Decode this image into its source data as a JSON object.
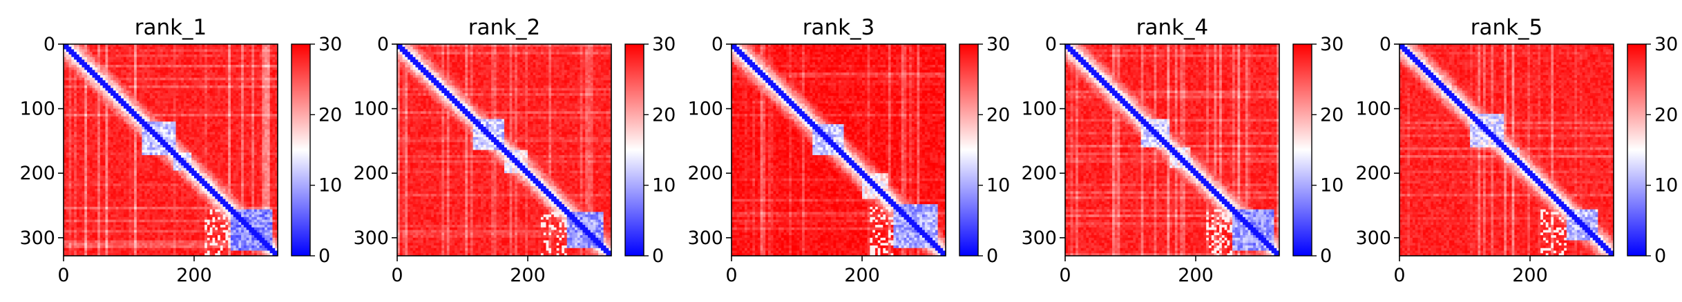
{
  "chart_data": [
    {
      "type": "heatmap",
      "title": "rank_1",
      "xlabel": "",
      "ylabel": "",
      "xlim": [
        0,
        328
      ],
      "ylim": [
        328,
        0
      ],
      "x_ticks": [
        0,
        200
      ],
      "y_ticks": [
        0,
        100,
        200,
        300
      ],
      "colorbar": {
        "cmap": "bwr",
        "range": [
          0,
          30
        ],
        "ticks": [
          0,
          10,
          20,
          30
        ]
      },
      "features": {
        "diag_width": 3,
        "domains": [
          {
            "start": 120,
            "end": 170,
            "value": 8
          },
          {
            "start": 170,
            "end": 195,
            "value": 10
          },
          {
            "start": 255,
            "end": 320,
            "value": 4
          }
        ],
        "background": 28
      }
    },
    {
      "type": "heatmap",
      "title": "rank_2",
      "xlabel": "",
      "ylabel": "",
      "xlim": [
        0,
        328
      ],
      "ylim": [
        328,
        0
      ],
      "x_ticks": [
        0,
        200
      ],
      "y_ticks": [
        0,
        100,
        200,
        300
      ],
      "colorbar": {
        "cmap": "bwr",
        "range": [
          0,
          30
        ],
        "ticks": [
          0,
          10,
          20,
          30
        ]
      },
      "features": {
        "diag_width": 3,
        "domains": [
          {
            "start": 115,
            "end": 165,
            "value": 8
          },
          {
            "start": 165,
            "end": 200,
            "value": 11
          },
          {
            "start": 260,
            "end": 315,
            "value": 5
          }
        ],
        "background": 28
      }
    },
    {
      "type": "heatmap",
      "title": "rank_3",
      "xlabel": "",
      "ylabel": "",
      "xlim": [
        0,
        328
      ],
      "ylim": [
        328,
        0
      ],
      "x_ticks": [
        0,
        200
      ],
      "y_ticks": [
        0,
        100,
        200,
        300
      ],
      "colorbar": {
        "cmap": "bwr",
        "range": [
          0,
          30
        ],
        "ticks": [
          0,
          10,
          20,
          30
        ]
      },
      "features": {
        "diag_width": 3,
        "domains": [
          {
            "start": 125,
            "end": 170,
            "value": 8
          },
          {
            "start": 200,
            "end": 240,
            "value": 12
          },
          {
            "start": 250,
            "end": 315,
            "value": 6
          }
        ],
        "background": 29
      }
    },
    {
      "type": "heatmap",
      "title": "rank_4",
      "xlabel": "",
      "ylabel": "",
      "xlim": [
        0,
        328
      ],
      "ylim": [
        328,
        0
      ],
      "x_ticks": [
        0,
        200
      ],
      "y_ticks": [
        0,
        100,
        200,
        300
      ],
      "colorbar": {
        "cmap": "bwr",
        "range": [
          0,
          30
        ],
        "ticks": [
          0,
          10,
          20,
          30
        ]
      },
      "features": {
        "diag_width": 3,
        "domains": [
          {
            "start": 115,
            "end": 160,
            "value": 9
          },
          {
            "start": 160,
            "end": 190,
            "value": 12
          },
          {
            "start": 255,
            "end": 320,
            "value": 5
          }
        ],
        "background": 28
      }
    },
    {
      "type": "heatmap",
      "title": "rank_5",
      "xlabel": "",
      "ylabel": "",
      "xlim": [
        0,
        328
      ],
      "ylim": [
        328,
        0
      ],
      "x_ticks": [
        0,
        200
      ],
      "y_ticks": [
        0,
        100,
        200,
        300
      ],
      "colorbar": {
        "cmap": "bwr",
        "range": [
          0,
          30
        ],
        "ticks": [
          0,
          10,
          20,
          30
        ]
      },
      "features": {
        "diag_width": 3,
        "domains": [
          {
            "start": 110,
            "end": 160,
            "value": 9
          },
          {
            "start": 160,
            "end": 185,
            "value": 12
          },
          {
            "start": 255,
            "end": 305,
            "value": 7
          }
        ],
        "background": 28
      }
    }
  ]
}
